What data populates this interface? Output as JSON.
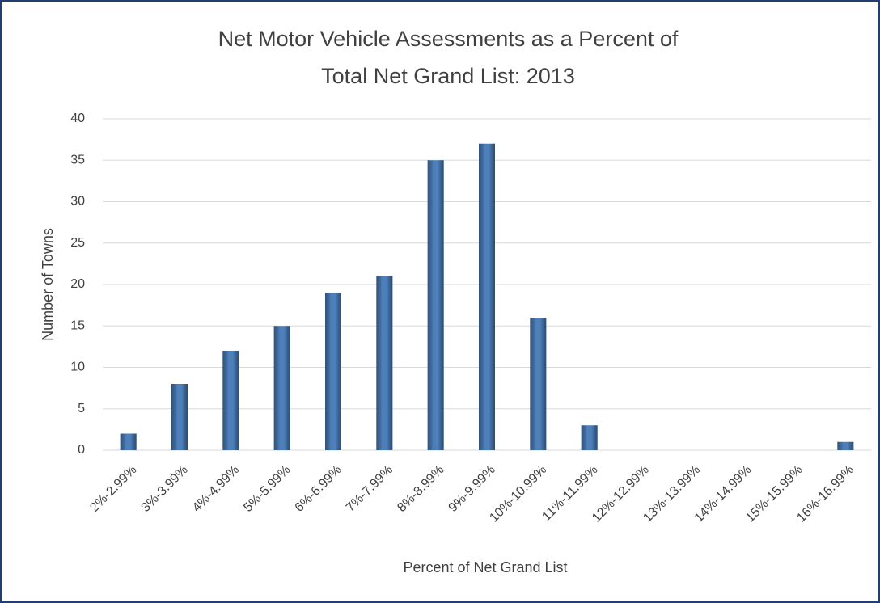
{
  "chart_data": {
    "type": "bar",
    "title": [
      "Net Motor Vehicle Assessments as a Percent of",
      "Total Net Grand List: 2013"
    ],
    "x_label": "Percent of Net Grand List",
    "y_label": "Number of Towns",
    "categories": [
      "2%-2.99%",
      "3%-3.99%",
      "4%-4.99%",
      "5%-5.99%",
      "6%-6.99%",
      "7%-7.99%",
      "8%-8.99%",
      "9%-9.99%",
      "10%-10.99%",
      "11%-11.99%",
      "12%-12.99%",
      "13%-13.99%",
      "14%-14.99%",
      "15%-15.99%",
      "16%-16.99%"
    ],
    "values": [
      2,
      8,
      12,
      15,
      19,
      21,
      35,
      37,
      16,
      3,
      0,
      0,
      0,
      0,
      1
    ],
    "color": "#4a7ebb",
    "ylim": [
      0,
      40
    ],
    "yticks": [
      0,
      5,
      10,
      15,
      20,
      25,
      30,
      35,
      40
    ],
    "grid": true
  }
}
